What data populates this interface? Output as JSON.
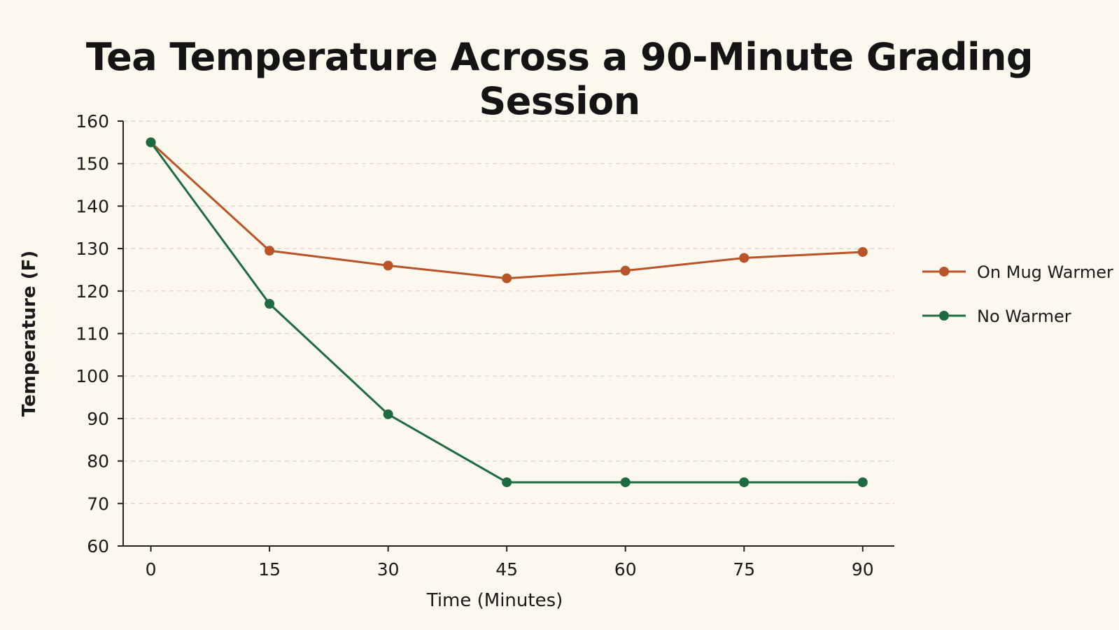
{
  "chart_data": {
    "type": "line",
    "title": "Tea Temperature Across a 90-Minute Grading Session",
    "xlabel": "Time (Minutes)",
    "ylabel": "Temperature (F)",
    "x": [
      0,
      15,
      30,
      45,
      60,
      75,
      90
    ],
    "x_ticks": [
      "0",
      "15",
      "30",
      "45",
      "60",
      "75",
      "90"
    ],
    "y_ticks": [
      "60",
      "70",
      "80",
      "90",
      "100",
      "110",
      "120",
      "130",
      "140",
      "150",
      "160"
    ],
    "xlim": [
      -3.5,
      94
    ],
    "ylim": [
      60,
      160
    ],
    "grid": "horizontal-dashed",
    "legend_position": "right",
    "series": [
      {
        "name": "On Mug Warmer",
        "color": "#b85428",
        "values": [
          155,
          129.5,
          126,
          123,
          124.8,
          127.8,
          129.2
        ]
      },
      {
        "name": "No Warmer",
        "color": "#1e6b42",
        "values": [
          155,
          117,
          91,
          75,
          75,
          75,
          75
        ]
      }
    ]
  }
}
